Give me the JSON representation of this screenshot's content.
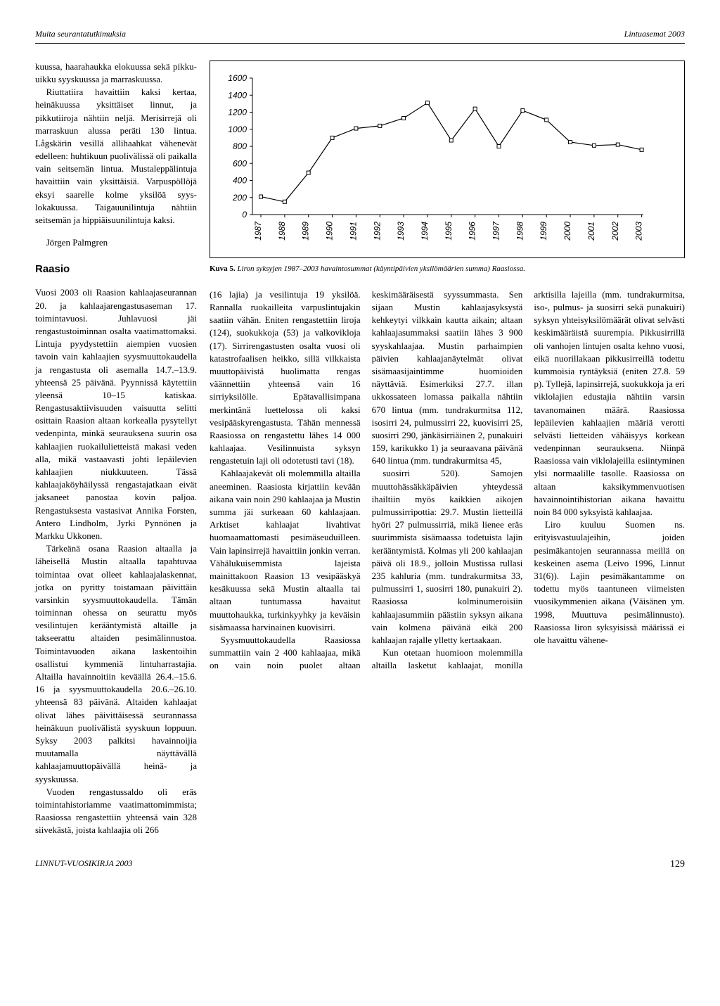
{
  "header": {
    "left": "Muita seurantatutkimuksia",
    "right": "Lintuasemat 2003"
  },
  "left_column": {
    "p1": "kuussa, haarahaukka elokuussa sekä pikku-uikku syyskuussa ja marraskuussa.",
    "p2": "Riuttatiira havaittiin kaksi kertaa, heinäkuussa yksittäiset linnut, ja pikkutiiroja nähtiin neljä. Merisirrejä oli marraskuun alussa peräti 130 lintua. Lågskärin vesillä allihaahkat vähenevät edelleen: huhtikuun puolivälissä oli paikalla vain seitsemän lintua. Mustaleppälintuja havaittiin vain yksittäisiä. Varpuspöllöjä eksyi saarelle kolme yksilöä syys-lokakuussa. Taigauunilintuja nähtiin seitsemän ja hippiäisuunilintuja kaksi.",
    "author": "Jörgen Palmgren",
    "section": "Raasio",
    "p3": "Vuosi 2003 oli Raasion kahlaajaseurannan 20. ja kahlaajarengastusaseman 17. toimintavuosi. Juhlavuosi jäi rengastustoiminnan osalta vaatimattomaksi. Lintuja pyydystettiin aiempien vuosien tavoin vain kahlaajien syysmuuttokaudella ja rengastusta oli asemalla 14.7.–13.9. yhteensä 25 päivänä. Pyynnissä käytettiin yleensä 10–15 katiskaa. Rengastusaktiivisuuden vaisuutta selitti osittain Raasion altaan korkealla pysytellyt vedenpinta, minkä seurauksena suurin osa kahlaajien ruokailulietteistä makasi veden alla, mikä vastaavasti johti lepäilevien kahlaajien niukkuuteen. Tässä kahlaajaköyhäilyssä rengastajatkaan eivät jaksaneet panostaa kovin paljoa. Rengastuksesta vastasivat Annika Forsten, Antero Lindholm, Jyrki Pynnönen ja Markku Ukkonen.",
    "p4": "Tärkeänä osana Raasion altaalla ja läheisellä Mustin altaalla tapahtuvaa toimintaa ovat olleet kahlaajalaskennat, jotka on pyritty toistamaan päivittäin varsinkin syysmuuttokaudella. Tämän toiminnan ohessa on seurattu myös vesilintujen kerääntymistä altaille ja takseerattu altaiden pesimälinnustoa. Toimintavuoden aikana laskentoihin osallistui kymmeniä lintuharrastajia. Altailla havainnoitiin keväällä 26.4.–15.6. 16 ja syysmuuttokaudella 20.6.–26.10. yhteensä 83 päivänä. Altaiden kahlaajat olivat lähes päivittäisessä seurannassa heinäkuun puolivälistä syyskuun loppuun. Syksy 2003 palkitsi havainnoijia muutamalla näyttävällä kahlaajamuuttopäivällä heinä- ja syyskuussa.",
    "p5": "Vuoden rengastussaldo oli eräs toimintahistoriamme vaatimattomimmista; Raasiossa rengastettiin yhteensä vain 328 siivekästä, joista kahlaajia oli 266"
  },
  "chart": {
    "caption_bold": "Kuva 5.",
    "caption_rest": " Liron syksyjen 1987–2003 havaintosummat (käyntipäivien yksilömäärien summa) Raasiossa.",
    "years": [
      "1987",
      "1988",
      "1989",
      "1990",
      "1991",
      "1992",
      "1993",
      "1994",
      "1995",
      "1996",
      "1997",
      "1998",
      "1999",
      "2000",
      "2001",
      "2002",
      "2003"
    ],
    "values": [
      210,
      150,
      490,
      900,
      1010,
      1040,
      1130,
      1310,
      870,
      1240,
      800,
      1220,
      1110,
      850,
      810,
      820,
      760
    ],
    "y_ticks": [
      0,
      200,
      400,
      600,
      800,
      1000,
      1200,
      1400,
      1600
    ],
    "y_max": 1600,
    "line_color": "#000000",
    "marker_fill": "#ffffff",
    "marker_stroke": "#000000",
    "marker_size": 5,
    "axis_color": "#000000",
    "font_size": 12
  },
  "body_cols": {
    "p1": "(16 lajia) ja vesilintuja 19 yksilöä. Rannalla ruokailleita varpuslintujakin saatiin vähän. Eniten rengastettiin liroja (124), suokukkoja (53) ja valkovikloja (17). Sirrirengastusten osalta vuosi oli katastrofaalisen heikko, sillä vilkkaista muuttopäivistä huolimatta rengas väännettiin yhteensä vain 16 sirriyksilölle. Epätavallisimpana merkintänä luettelossa oli kaksi vesipääskyrengastusta. Tähän mennessä Raasiossa on rengastettu lähes 14 000 kahlaajaa. Vesilinnuista syksyn rengastetuin laji oli odotetusti tavi (18).",
    "p2": "Kahlaajakevät oli molemmilla altailla aneeminen. Raasiosta kirjattiin kevään aikana vain noin 290 kahlaajaa ja Mustin summa jäi surkeaan 60 kahlaajaan. Arktiset kahlaajat livahtivat huomaamattomasti pesimäseuduilleen. Vain lapinsirrejä havaittiin jonkin verran. Vähälukuisemmista lajeista mainittakoon Raasion 13 vesipääskyä kesäkuussa sekä Mustin altaalla tai altaan tuntumassa havaitut muuttohaukka, turkinkyyhky ja keväisin sisämaassa harvinainen kuovisirri.",
    "p3": "Syysmuuttokaudella Raasiossa summattiin vain 2 400 kahlaajaa, mikä on vain noin puolet altaan keskimääräisestä syyssummasta. Sen sijaan Mustin kahlaajasyksystä kehkeytyi vilkkain kautta aikain; altaan kahlaajasummaksi saatiin lähes 3 900 syyskahlaajaa. Mustin parhaimpien päivien kahlaajanäytelmät olivat sisämaasijaintimme huomioiden näyttäviä. Esimerkiksi 27.7. illan ukkossateen lomassa paikalla nähtiin 670 lintua (mm. tundrakurmitsa 112, isosirri 24, pulmussirri 22, kuovisirri 25, suosirri 290, jänkäsirriäinen 2, punakuiri 159, karikukko 1) ja seuraavana päivänä 640 lintua (mm. tundrakurmitsa 45,",
    "p4": "suosirri 520). Samojen muuttohässäkkäpäivien yhteydessä ihailtiin myös kaikkien aikojen pulmussirripottia: 29.7. Mustin lietteillä hyöri 27 pulmussirriä, mikä lienee eräs suurimmista sisämaassa todetuista lajin kerääntymistä. Kolmas yli 200 kahlaajan päivä oli 18.9., jolloin Mustissa rullasi 235 kahluria (mm. tundrakurmitsa 33, pulmussirri 1, suosirri 180, punakuiri 2). Raasiossa kolminumeroisiin kahlaajasummiin päästiin syksyn aikana vain kolmena päivänä eikä 200 kahlaajan rajalle ylletty kertaakaan.",
    "p5": "Kun otetaan huomioon molemmilla altailla lasketut kahlaajat, monilla arktisilla lajeilla (mm. tundrakurmitsa, iso-, pulmus- ja suosirri sekä punakuiri) syksyn yhteisyksilömäärät olivat selvästi keskimääräistä suurempia. Pikkusirrillä oli vanhojen lintujen osalta kehno vuosi, eikä nuorillakaan pikkusirreillä todettu kummoisia ryntäyksiä (eniten 27.8. 59 p). Tyllejä, lapinsirrejä, suokukkoja ja eri viklolajien edustajia nähtiin varsin tavanomainen määrä. Raasiossa lepäilevien kahlaajien määriä verotti selvästi lietteiden vähäisyys korkean vedenpinnan seurauksena. Niinpä Raasiossa vain viklolajeilla esiintyminen ylsi normaalille tasolle. Raasiossa on altaan kaksikymmenvuotisen havainnointihistorian aikana havaittu noin 84 000 syksyistä kahlaajaa.",
    "p6": "Liro kuuluu Suomen ns. erityisvastuulajeihin, joiden pesimäkantojen seurannassa meillä on keskeinen asema (Leivo 1996, Linnut 31(6)). Lajin pesimäkantamme on todettu myös taantuneen viimeisten vuosikymmenien aikana (Väisänen ym. 1998, Muuttuva pesimälinnusto). Raasiossa liron syksyisissä määrissä ei ole havaittu vähene-"
  },
  "footer": {
    "left": "LINNUT-VUOSIKIRJA 2003",
    "page": "129"
  }
}
